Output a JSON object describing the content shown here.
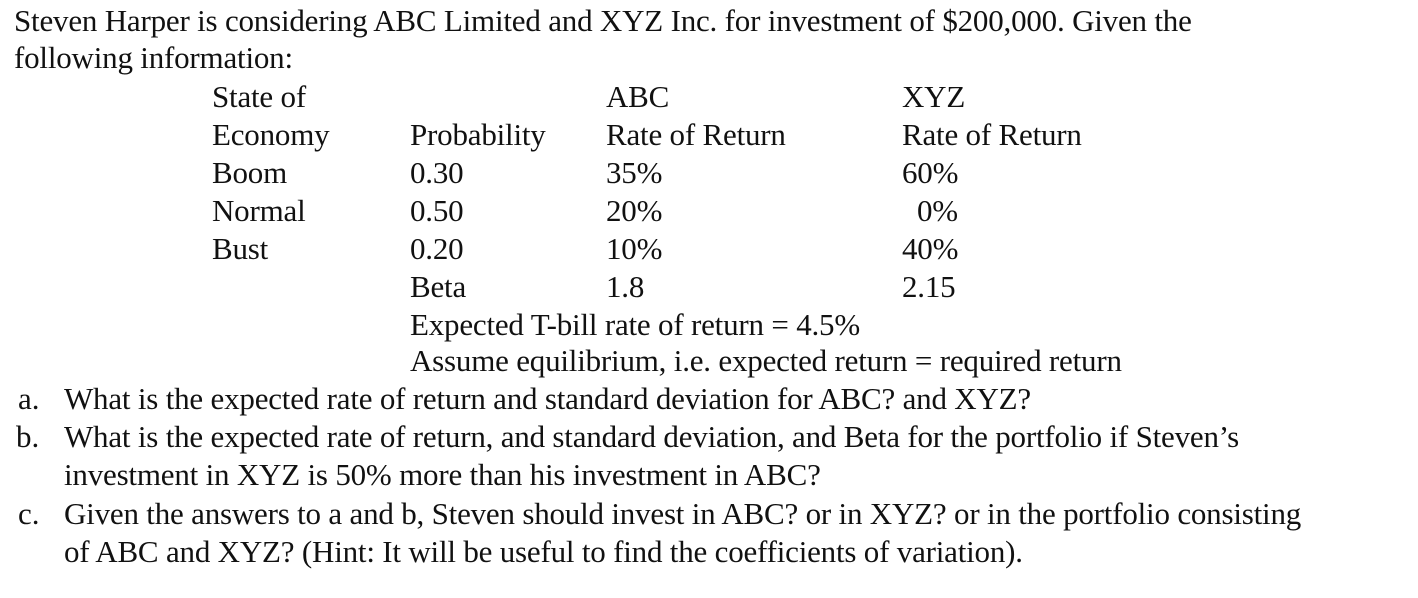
{
  "intro": {
    "line1": "Steven Harper is considering ABC Limited and XYZ Inc. for investment of $200,000. Given the",
    "line2": "following information:"
  },
  "table": {
    "headers": {
      "state_line1": "State of",
      "state_line2": "Economy",
      "probability": "Probability",
      "abc_line1": "ABC",
      "abc_line2": "Rate of Return",
      "xyz_line1": "XYZ",
      "xyz_line2": "Rate of Return"
    },
    "rows": [
      {
        "state": "Boom",
        "probability": "0.30",
        "abc": "35%",
        "xyz": "60%"
      },
      {
        "state": "Normal",
        "probability": "0.50",
        "abc": "20%",
        "xyz": "0%"
      },
      {
        "state": "Bust",
        "probability": "0.20",
        "abc": "10%",
        "xyz": "40%"
      }
    ],
    "beta": {
      "label": "Beta",
      "abc": "1.8",
      "xyz": "2.15"
    }
  },
  "notes": {
    "tbill": "Expected T-bill rate of return = 4.5%",
    "equilibrium": "Assume equilibrium, i.e. expected return = required return"
  },
  "questions": [
    {
      "marker": "a.",
      "lines": [
        "What is the expected rate of return and standard deviation for ABC? and XYZ?"
      ]
    },
    {
      "marker": "b.",
      "lines": [
        "What is the expected rate of return, and standard deviation, and Beta for the portfolio if Steven’s",
        "investment in XYZ is 50% more than his investment in ABC?"
      ]
    },
    {
      "marker": "c.",
      "lines": [
        "Given the answers to a and b, Steven should invest in ABC? or in XYZ? or in the portfolio consisting",
        "of ABC and XYZ? (Hint: It will be useful to find the coefficients of variation)."
      ]
    }
  ]
}
